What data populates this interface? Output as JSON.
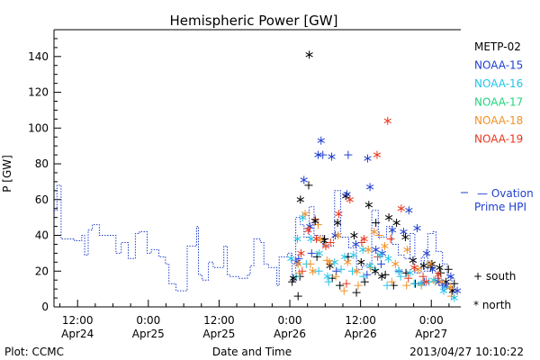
{
  "chart_data": {
    "type": "scatter",
    "title": "Hemispheric Power [GW]",
    "xlabel": "Date and Time",
    "ylabel": "P [GW]",
    "footer_left": "Plot: CCMC",
    "footer_right": "2013/04/27 10:10:22",
    "x_unit": "hours",
    "xlim": [
      -16,
      53
    ],
    "ylim": [
      0,
      155
    ],
    "y_ticks": [
      0,
      20,
      40,
      60,
      80,
      100,
      120,
      140
    ],
    "x_ticks": [
      {
        "x": -12,
        "line1": "12:00",
        "line2": "Apr24"
      },
      {
        "x": 0,
        "line1": "0:00",
        "line2": "Apr25"
      },
      {
        "x": 12,
        "line1": "12:00",
        "line2": "Apr25"
      },
      {
        "x": 24,
        "line1": "0:00",
        "line2": "Apr26"
      },
      {
        "x": 36,
        "line1": "12:00",
        "line2": "Apr26"
      },
      {
        "x": 48,
        "line1": "0:00",
        "line2": "Apr27"
      }
    ],
    "legend_placement": "right",
    "series": [
      {
        "name": "METP-02",
        "color": "#000000"
      },
      {
        "name": "NOAA-15",
        "color": "#1f3fd0"
      },
      {
        "name": "NOAA-16",
        "color": "#22c4e8"
      },
      {
        "name": "NOAA-17",
        "color": "#22d47e"
      },
      {
        "name": "NOAA-18",
        "color": "#f0922a"
      },
      {
        "name": "NOAA-19",
        "color": "#e8361c"
      }
    ],
    "model": {
      "name": "Ovation Prime HPI",
      "line1": "— Ovation",
      "line2": "Prime HPI",
      "color": "#1f3fd0",
      "points": [
        [
          -16,
          54
        ],
        [
          -15.5,
          54
        ],
        [
          -15.5,
          68
        ],
        [
          -14.8,
          68
        ],
        [
          -14.8,
          38
        ],
        [
          -12.5,
          38
        ],
        [
          -12.5,
          37
        ],
        [
          -11.3,
          37
        ],
        [
          -11.3,
          40
        ],
        [
          -10.8,
          40
        ],
        [
          -10.8,
          29
        ],
        [
          -10.2,
          29
        ],
        [
          -10.2,
          43
        ],
        [
          -9.5,
          43
        ],
        [
          -9.5,
          46
        ],
        [
          -8.3,
          46
        ],
        [
          -8.3,
          40
        ],
        [
          -5.5,
          40
        ],
        [
          -5.5,
          30
        ],
        [
          -4.6,
          30
        ],
        [
          -4.6,
          36
        ],
        [
          -3.4,
          36
        ],
        [
          -3.4,
          27
        ],
        [
          -2.2,
          27
        ],
        [
          -2.2,
          41
        ],
        [
          -1.5,
          41
        ],
        [
          -1.5,
          42
        ],
        [
          -0.2,
          42
        ],
        [
          -0.2,
          30
        ],
        [
          0.5,
          30
        ],
        [
          0.5,
          32
        ],
        [
          1.8,
          32
        ],
        [
          1.8,
          28
        ],
        [
          2.9,
          28
        ],
        [
          2.9,
          24
        ],
        [
          3.5,
          24
        ],
        [
          3.5,
          13
        ],
        [
          4.7,
          13
        ],
        [
          4.7,
          9
        ],
        [
          6.6,
          9
        ],
        [
          6.6,
          34
        ],
        [
          8.2,
          34
        ],
        [
          8.2,
          45
        ],
        [
          8.5,
          45
        ],
        [
          8.5,
          18
        ],
        [
          9.1,
          18
        ],
        [
          9.1,
          15
        ],
        [
          10.2,
          15
        ],
        [
          10.2,
          25
        ],
        [
          11,
          25
        ],
        [
          11,
          22
        ],
        [
          12.8,
          22
        ],
        [
          12.8,
          34
        ],
        [
          13.4,
          34
        ],
        [
          13.4,
          18
        ],
        [
          13.8,
          18
        ],
        [
          13.8,
          17
        ],
        [
          15.3,
          17
        ],
        [
          15.3,
          16
        ],
        [
          16.8,
          16
        ],
        [
          16.8,
          18
        ],
        [
          17.3,
          18
        ],
        [
          17.3,
          23
        ],
        [
          17.9,
          23
        ],
        [
          17.9,
          38
        ],
        [
          19,
          38
        ],
        [
          19,
          36
        ],
        [
          19.6,
          36
        ],
        [
          19.6,
          24
        ],
        [
          20.4,
          24
        ],
        [
          20.4,
          22
        ],
        [
          21.8,
          22
        ],
        [
          21.8,
          12
        ],
        [
          22.2,
          12
        ],
        [
          22.2,
          28
        ],
        [
          23.6,
          28
        ],
        [
          23.6,
          30
        ],
        [
          24.4,
          30
        ],
        [
          24.4,
          15
        ],
        [
          25,
          15
        ],
        [
          25,
          50
        ],
        [
          25.8,
          50
        ],
        [
          25.8,
          46
        ],
        [
          26.4,
          46
        ],
        [
          26.4,
          39
        ],
        [
          27.3,
          39
        ],
        [
          27.3,
          56
        ],
        [
          28.1,
          56
        ],
        [
          28.1,
          40
        ],
        [
          29.6,
          40
        ],
        [
          29.6,
          34
        ],
        [
          31.4,
          34
        ],
        [
          31.4,
          39
        ],
        [
          31.6,
          39
        ],
        [
          31.6,
          65
        ],
        [
          32.6,
          65
        ],
        [
          32.6,
          39
        ],
        [
          34,
          39
        ],
        [
          34,
          33
        ],
        [
          35.3,
          33
        ],
        [
          35.3,
          21
        ],
        [
          36.3,
          21
        ],
        [
          36.3,
          23
        ],
        [
          37.1,
          23
        ],
        [
          37.1,
          24
        ],
        [
          37.9,
          24
        ],
        [
          37.9,
          54
        ],
        [
          39,
          54
        ],
        [
          39,
          39
        ],
        [
          40.4,
          39
        ],
        [
          40.4,
          45
        ],
        [
          41.3,
          45
        ],
        [
          41.3,
          35
        ],
        [
          42.4,
          35
        ],
        [
          42.4,
          29
        ],
        [
          43.4,
          29
        ],
        [
          43.4,
          27
        ],
        [
          44.4,
          27
        ],
        [
          44.4,
          41
        ],
        [
          45.2,
          41
        ],
        [
          45.2,
          19
        ],
        [
          46.3,
          19
        ],
        [
          46.3,
          28
        ],
        [
          46.8,
          28
        ],
        [
          46.8,
          20
        ],
        [
          47.4,
          20
        ],
        [
          47.4,
          41
        ],
        [
          48.3,
          41
        ],
        [
          48.3,
          42
        ],
        [
          48.8,
          42
        ],
        [
          48.8,
          31
        ],
        [
          49.9,
          31
        ],
        [
          49.9,
          24
        ],
        [
          50.7,
          24
        ],
        [
          50.7,
          17
        ],
        [
          51.5,
          17
        ],
        [
          51.5,
          8
        ]
      ]
    },
    "south_points": [
      {
        "s": 0,
        "x": 24.4,
        "y": 14
      },
      {
        "s": 0,
        "x": 25.4,
        "y": 6
      },
      {
        "s": 0,
        "x": 25.7,
        "y": 17
      },
      {
        "s": 0,
        "x": 27.2,
        "y": 68
      },
      {
        "s": 0,
        "x": 28.6,
        "y": 28
      },
      {
        "s": 0,
        "x": 29.9,
        "y": 38
      },
      {
        "s": 0,
        "x": 31.2,
        "y": 16
      },
      {
        "s": 0,
        "x": 32.5,
        "y": 12
      },
      {
        "s": 0,
        "x": 33.9,
        "y": 28
      },
      {
        "s": 0,
        "x": 35.3,
        "y": 8
      },
      {
        "s": 0,
        "x": 36.7,
        "y": 14
      },
      {
        "s": 0,
        "x": 38.6,
        "y": 47
      },
      {
        "s": 0,
        "x": 40.2,
        "y": 18
      },
      {
        "s": 0,
        "x": 41.6,
        "y": 12
      },
      {
        "s": 0,
        "x": 43.7,
        "y": 19
      },
      {
        "s": 0,
        "x": 45.3,
        "y": 13
      },
      {
        "s": 0,
        "x": 47.9,
        "y": 22
      },
      {
        "s": 0,
        "x": 49.6,
        "y": 19
      },
      {
        "s": 0,
        "x": 50.9,
        "y": 21
      },
      {
        "s": 0,
        "x": 51.9,
        "y": 13
      },
      {
        "s": 1,
        "x": 25.5,
        "y": 27
      },
      {
        "s": 1,
        "x": 27.7,
        "y": 30
      },
      {
        "s": 1,
        "x": 29.6,
        "y": 85
      },
      {
        "s": 1,
        "x": 31.9,
        "y": 20
      },
      {
        "s": 1,
        "x": 33.9,
        "y": 85
      },
      {
        "s": 1,
        "x": 37.1,
        "y": 18
      },
      {
        "s": 1,
        "x": 39.5,
        "y": 24
      },
      {
        "s": 1,
        "x": 42.5,
        "y": 20
      },
      {
        "s": 1,
        "x": 46.8,
        "y": 14
      },
      {
        "s": 1,
        "x": 49.9,
        "y": 12
      },
      {
        "s": 2,
        "x": 25.1,
        "y": 17
      },
      {
        "s": 2,
        "x": 26.8,
        "y": 24
      },
      {
        "s": 2,
        "x": 28.9,
        "y": 20
      },
      {
        "s": 2,
        "x": 30.6,
        "y": 14
      },
      {
        "s": 2,
        "x": 32.7,
        "y": 21
      },
      {
        "s": 2,
        "x": 34.6,
        "y": 20
      },
      {
        "s": 2,
        "x": 36.5,
        "y": 17
      },
      {
        "s": 2,
        "x": 38.4,
        "y": 21
      },
      {
        "s": 2,
        "x": 40.5,
        "y": 12
      },
      {
        "s": 2,
        "x": 42.8,
        "y": 17
      },
      {
        "s": 2,
        "x": 45.1,
        "y": 13
      },
      {
        "s": 2,
        "x": 47.6,
        "y": 14
      },
      {
        "s": 2,
        "x": 50.3,
        "y": 11
      },
      {
        "s": 4,
        "x": 25.6,
        "y": 19
      },
      {
        "s": 4,
        "x": 27.5,
        "y": 24
      },
      {
        "s": 4,
        "x": 28.8,
        "y": 46
      },
      {
        "s": 4,
        "x": 30.3,
        "y": 26
      },
      {
        "s": 4,
        "x": 31.8,
        "y": 17
      },
      {
        "s": 4,
        "x": 33.2,
        "y": 9
      },
      {
        "s": 4,
        "x": 35.6,
        "y": 12
      },
      {
        "s": 4,
        "x": 37.7,
        "y": 22
      },
      {
        "s": 4,
        "x": 39.2,
        "y": 40
      },
      {
        "s": 4,
        "x": 41.3,
        "y": 14
      },
      {
        "s": 4,
        "x": 43.8,
        "y": 12
      },
      {
        "s": 4,
        "x": 46.3,
        "y": 12
      },
      {
        "s": 4,
        "x": 48.7,
        "y": 14
      },
      {
        "s": 4,
        "x": 51.4,
        "y": 6
      },
      {
        "s": 5,
        "x": 26.1,
        "y": 20
      },
      {
        "s": 5,
        "x": 28.3,
        "y": 49
      },
      {
        "s": 5,
        "x": 30.9,
        "y": 36
      },
      {
        "s": 5,
        "x": 33.6,
        "y": 13
      },
      {
        "s": 5,
        "x": 36.2,
        "y": 36
      },
      {
        "s": 5,
        "x": 38.9,
        "y": 28
      },
      {
        "s": 5,
        "x": 41.1,
        "y": 38
      },
      {
        "s": 5,
        "x": 44.1,
        "y": 16
      },
      {
        "s": 5,
        "x": 46.6,
        "y": 17
      },
      {
        "s": 5,
        "x": 49.1,
        "y": 16
      }
    ],
    "north_points": [
      {
        "s": 0,
        "x": 24.6,
        "y": 16
      },
      {
        "s": 0,
        "x": 25.8,
        "y": 60
      },
      {
        "s": 0,
        "x": 27.3,
        "y": 141
      },
      {
        "s": 0,
        "x": 28.3,
        "y": 48
      },
      {
        "s": 0,
        "x": 29.8,
        "y": 37
      },
      {
        "s": 0,
        "x": 30.8,
        "y": 23
      },
      {
        "s": 0,
        "x": 32.1,
        "y": 47
      },
      {
        "s": 0,
        "x": 33.5,
        "y": 62
      },
      {
        "s": 0,
        "x": 34.9,
        "y": 40
      },
      {
        "s": 0,
        "x": 36.1,
        "y": 25
      },
      {
        "s": 0,
        "x": 37.4,
        "y": 57
      },
      {
        "s": 0,
        "x": 38.5,
        "y": 20
      },
      {
        "s": 0,
        "x": 39.6,
        "y": 17
      },
      {
        "s": 0,
        "x": 40.8,
        "y": 50
      },
      {
        "s": 0,
        "x": 42.1,
        "y": 47
      },
      {
        "s": 0,
        "x": 43.6,
        "y": 39
      },
      {
        "s": 0,
        "x": 44.9,
        "y": 26
      },
      {
        "s": 0,
        "x": 46.7,
        "y": 23
      },
      {
        "s": 0,
        "x": 48.1,
        "y": 24
      },
      {
        "s": 0,
        "x": 49.4,
        "y": 22
      },
      {
        "s": 0,
        "x": 50.5,
        "y": 14
      },
      {
        "s": 0,
        "x": 51.6,
        "y": 9
      },
      {
        "s": 1,
        "x": 25.2,
        "y": 25
      },
      {
        "s": 1,
        "x": 26.4,
        "y": 71
      },
      {
        "s": 1,
        "x": 27.4,
        "y": 45
      },
      {
        "s": 1,
        "x": 28.8,
        "y": 85
      },
      {
        "s": 1,
        "x": 29.3,
        "y": 93
      },
      {
        "s": 1,
        "x": 31.1,
        "y": 84
      },
      {
        "s": 1,
        "x": 31.7,
        "y": 40
      },
      {
        "s": 1,
        "x": 33.7,
        "y": 63
      },
      {
        "s": 1,
        "x": 35.2,
        "y": 35
      },
      {
        "s": 1,
        "x": 37.2,
        "y": 83
      },
      {
        "s": 1,
        "x": 37.6,
        "y": 67
      },
      {
        "s": 1,
        "x": 38.6,
        "y": 32
      },
      {
        "s": 1,
        "x": 39.7,
        "y": 30
      },
      {
        "s": 1,
        "x": 41.4,
        "y": 43
      },
      {
        "s": 1,
        "x": 43.3,
        "y": 42
      },
      {
        "s": 1,
        "x": 44.2,
        "y": 54
      },
      {
        "s": 1,
        "x": 45.6,
        "y": 44
      },
      {
        "s": 1,
        "x": 47.2,
        "y": 30
      },
      {
        "s": 1,
        "x": 48.2,
        "y": 21
      },
      {
        "s": 1,
        "x": 49.3,
        "y": 14
      },
      {
        "s": 1,
        "x": 50.6,
        "y": 12
      },
      {
        "s": 1,
        "x": 51.3,
        "y": 17
      },
      {
        "s": 1,
        "x": 52.4,
        "y": 9
      },
      {
        "s": 2,
        "x": 24.2,
        "y": 27
      },
      {
        "s": 2,
        "x": 25.3,
        "y": 38
      },
      {
        "s": 2,
        "x": 26.2,
        "y": 50
      },
      {
        "s": 2,
        "x": 27.6,
        "y": 38
      },
      {
        "s": 2,
        "x": 29,
        "y": 30
      },
      {
        "s": 2,
        "x": 30.4,
        "y": 17
      },
      {
        "s": 2,
        "x": 31.6,
        "y": 25
      },
      {
        "s": 2,
        "x": 33.3,
        "y": 28
      },
      {
        "s": 2,
        "x": 34.8,
        "y": 29
      },
      {
        "s": 2,
        "x": 36.4,
        "y": 32
      },
      {
        "s": 2,
        "x": 37.6,
        "y": 23
      },
      {
        "s": 2,
        "x": 39.3,
        "y": 29
      },
      {
        "s": 2,
        "x": 40.7,
        "y": 27
      },
      {
        "s": 2,
        "x": 42.5,
        "y": 20
      },
      {
        "s": 2,
        "x": 44.4,
        "y": 19
      },
      {
        "s": 2,
        "x": 46.3,
        "y": 13
      },
      {
        "s": 2,
        "x": 48.4,
        "y": 15
      },
      {
        "s": 2,
        "x": 50.1,
        "y": 9
      },
      {
        "s": 2,
        "x": 51.9,
        "y": 5
      },
      {
        "s": 4,
        "x": 25.4,
        "y": 24
      },
      {
        "s": 4,
        "x": 26.6,
        "y": 52
      },
      {
        "s": 4,
        "x": 27.9,
        "y": 20
      },
      {
        "s": 4,
        "x": 29.2,
        "y": 38
      },
      {
        "s": 4,
        "x": 30.7,
        "y": 25
      },
      {
        "s": 4,
        "x": 32.2,
        "y": 40
      },
      {
        "s": 4,
        "x": 33.8,
        "y": 25
      },
      {
        "s": 4,
        "x": 35.4,
        "y": 20
      },
      {
        "s": 4,
        "x": 37.3,
        "y": 32
      },
      {
        "s": 4,
        "x": 38.3,
        "y": 42
      },
      {
        "s": 4,
        "x": 40.1,
        "y": 34
      },
      {
        "s": 4,
        "x": 41.9,
        "y": 24
      },
      {
        "s": 4,
        "x": 43.9,
        "y": 32
      },
      {
        "s": 4,
        "x": 45.8,
        "y": 21
      },
      {
        "s": 4,
        "x": 47.8,
        "y": 24
      },
      {
        "s": 4,
        "x": 49.7,
        "y": 14
      },
      {
        "s": 4,
        "x": 51.2,
        "y": 11
      },
      {
        "s": 5,
        "x": 25.9,
        "y": 30
      },
      {
        "s": 5,
        "x": 27.1,
        "y": 43
      },
      {
        "s": 5,
        "x": 28.5,
        "y": 38
      },
      {
        "s": 5,
        "x": 30.1,
        "y": 34
      },
      {
        "s": 5,
        "x": 32.3,
        "y": 52
      },
      {
        "s": 5,
        "x": 34.2,
        "y": 60
      },
      {
        "s": 5,
        "x": 36.6,
        "y": 38
      },
      {
        "s": 5,
        "x": 38.8,
        "y": 85
      },
      {
        "s": 5,
        "x": 40.6,
        "y": 104
      },
      {
        "s": 5,
        "x": 42.9,
        "y": 55
      },
      {
        "s": 5,
        "x": 45.1,
        "y": 22
      },
      {
        "s": 5,
        "x": 47.1,
        "y": 14
      },
      {
        "s": 5,
        "x": 49.2,
        "y": 18
      }
    ],
    "symbol_legend": {
      "south": "+ south",
      "north": "* north"
    }
  }
}
